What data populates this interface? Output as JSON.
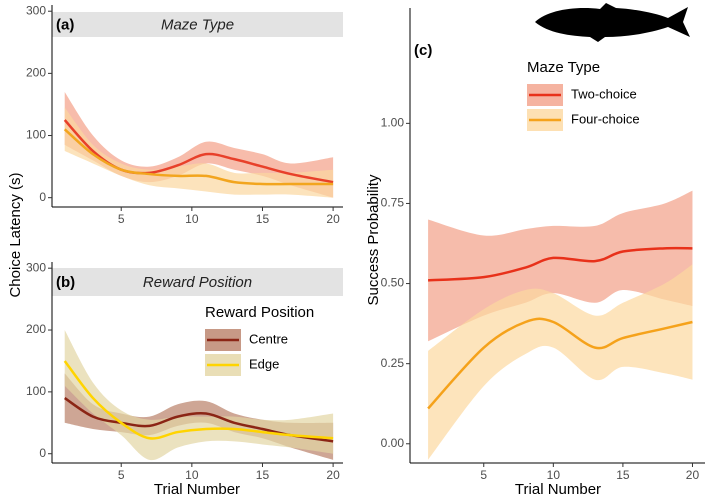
{
  "chart_data": [
    {
      "type": "line",
      "tag": "(a)",
      "strip": "Maze Type",
      "ylabel": "Choice Latency (s)",
      "xlim": [
        0.1,
        20.7
      ],
      "ylim": [
        -15,
        310
      ],
      "xticks": [
        5,
        10,
        15,
        20
      ],
      "yticks": [
        0,
        100,
        200,
        300
      ],
      "x": [
        1,
        3,
        5,
        7,
        9,
        11,
        13,
        15,
        17,
        20
      ],
      "series": [
        {
          "color": "#e8402a",
          "band_color": "#f4a088",
          "values": [
            125,
            75,
            45,
            40,
            52,
            70,
            62,
            50,
            38,
            25
          ],
          "lower": [
            85,
            60,
            35,
            25,
            35,
            55,
            45,
            35,
            20,
            0
          ],
          "upper": [
            170,
            100,
            60,
            50,
            65,
            90,
            80,
            70,
            55,
            65
          ]
        },
        {
          "color": "#f2a51e",
          "band_color": "#fbd7a0",
          "values": [
            110,
            70,
            45,
            38,
            35,
            35,
            25,
            22,
            22,
            22
          ],
          "lower": [
            75,
            55,
            35,
            20,
            15,
            10,
            5,
            5,
            5,
            0
          ],
          "upper": [
            145,
            85,
            55,
            45,
            50,
            55,
            40,
            40,
            40,
            45
          ]
        }
      ]
    },
    {
      "type": "line",
      "tag": "(b)",
      "strip": "Reward Position",
      "xlabel": "Trial Number",
      "legend_title": "Reward Position",
      "xlim": [
        0.1,
        20.7
      ],
      "ylim": [
        -15,
        310
      ],
      "xticks": [
        5,
        10,
        15,
        20
      ],
      "yticks": [
        0,
        100,
        200,
        300
      ],
      "x": [
        1,
        3,
        5,
        7,
        9,
        11,
        13,
        15,
        17,
        20
      ],
      "series": [
        {
          "name": "Centre",
          "color": "#8b2515",
          "band_color": "#b98068",
          "values": [
            90,
            60,
            50,
            45,
            60,
            65,
            50,
            40,
            30,
            20
          ],
          "lower": [
            50,
            40,
            35,
            30,
            45,
            50,
            35,
            25,
            10,
            -10
          ],
          "upper": [
            130,
            80,
            65,
            60,
            80,
            85,
            65,
            55,
            50,
            50
          ]
        },
        {
          "name": "Edge",
          "color": "#ffd400",
          "band_color": "#e3d6a4",
          "values": [
            150,
            90,
            50,
            25,
            35,
            40,
            40,
            35,
            30,
            25
          ],
          "lower": [
            110,
            65,
            30,
            -10,
            10,
            20,
            20,
            15,
            10,
            0
          ],
          "upper": [
            200,
            115,
            70,
            55,
            60,
            60,
            60,
            55,
            55,
            65
          ]
        }
      ]
    },
    {
      "type": "line",
      "tag": "(c)",
      "xlabel": "Trial Number",
      "ylabel": "Success Probability",
      "legend_title": "Maze Type",
      "xlim": [
        -0.3,
        20.9
      ],
      "ylim": [
        -0.06,
        1.36
      ],
      "xticks": [
        5,
        10,
        15,
        20
      ],
      "yticks": [
        {
          "value": 0,
          "label": "0.00"
        },
        {
          "value": 0.25,
          "label": "0.25"
        },
        {
          "value": 0.5,
          "label": "0.50"
        },
        {
          "value": 0.75,
          "label": "0.75"
        },
        {
          "value": 1,
          "label": "1.00"
        }
      ],
      "x": [
        1,
        5,
        8,
        10,
        13,
        15,
        18,
        20
      ],
      "series": [
        {
          "name": "Two-choice",
          "color": "#e8311a",
          "band_color": "#f2a088",
          "values": [
            0.51,
            0.52,
            0.55,
            0.58,
            0.57,
            0.6,
            0.61,
            0.61
          ],
          "lower": [
            0.32,
            0.4,
            0.44,
            0.47,
            0.44,
            0.48,
            0.45,
            0.43
          ],
          "upper": [
            0.7,
            0.65,
            0.67,
            0.68,
            0.68,
            0.72,
            0.75,
            0.79
          ]
        },
        {
          "name": "Four-choice",
          "color": "#f5a21b",
          "band_color": "#fcd8a0",
          "values": [
            0.11,
            0.3,
            0.38,
            0.38,
            0.3,
            0.33,
            0.36,
            0.38
          ],
          "lower": [
            -0.05,
            0.18,
            0.28,
            0.3,
            0.2,
            0.24,
            0.22,
            0.2
          ],
          "upper": [
            0.29,
            0.42,
            0.48,
            0.47,
            0.4,
            0.44,
            0.5,
            0.56
          ]
        }
      ]
    }
  ]
}
